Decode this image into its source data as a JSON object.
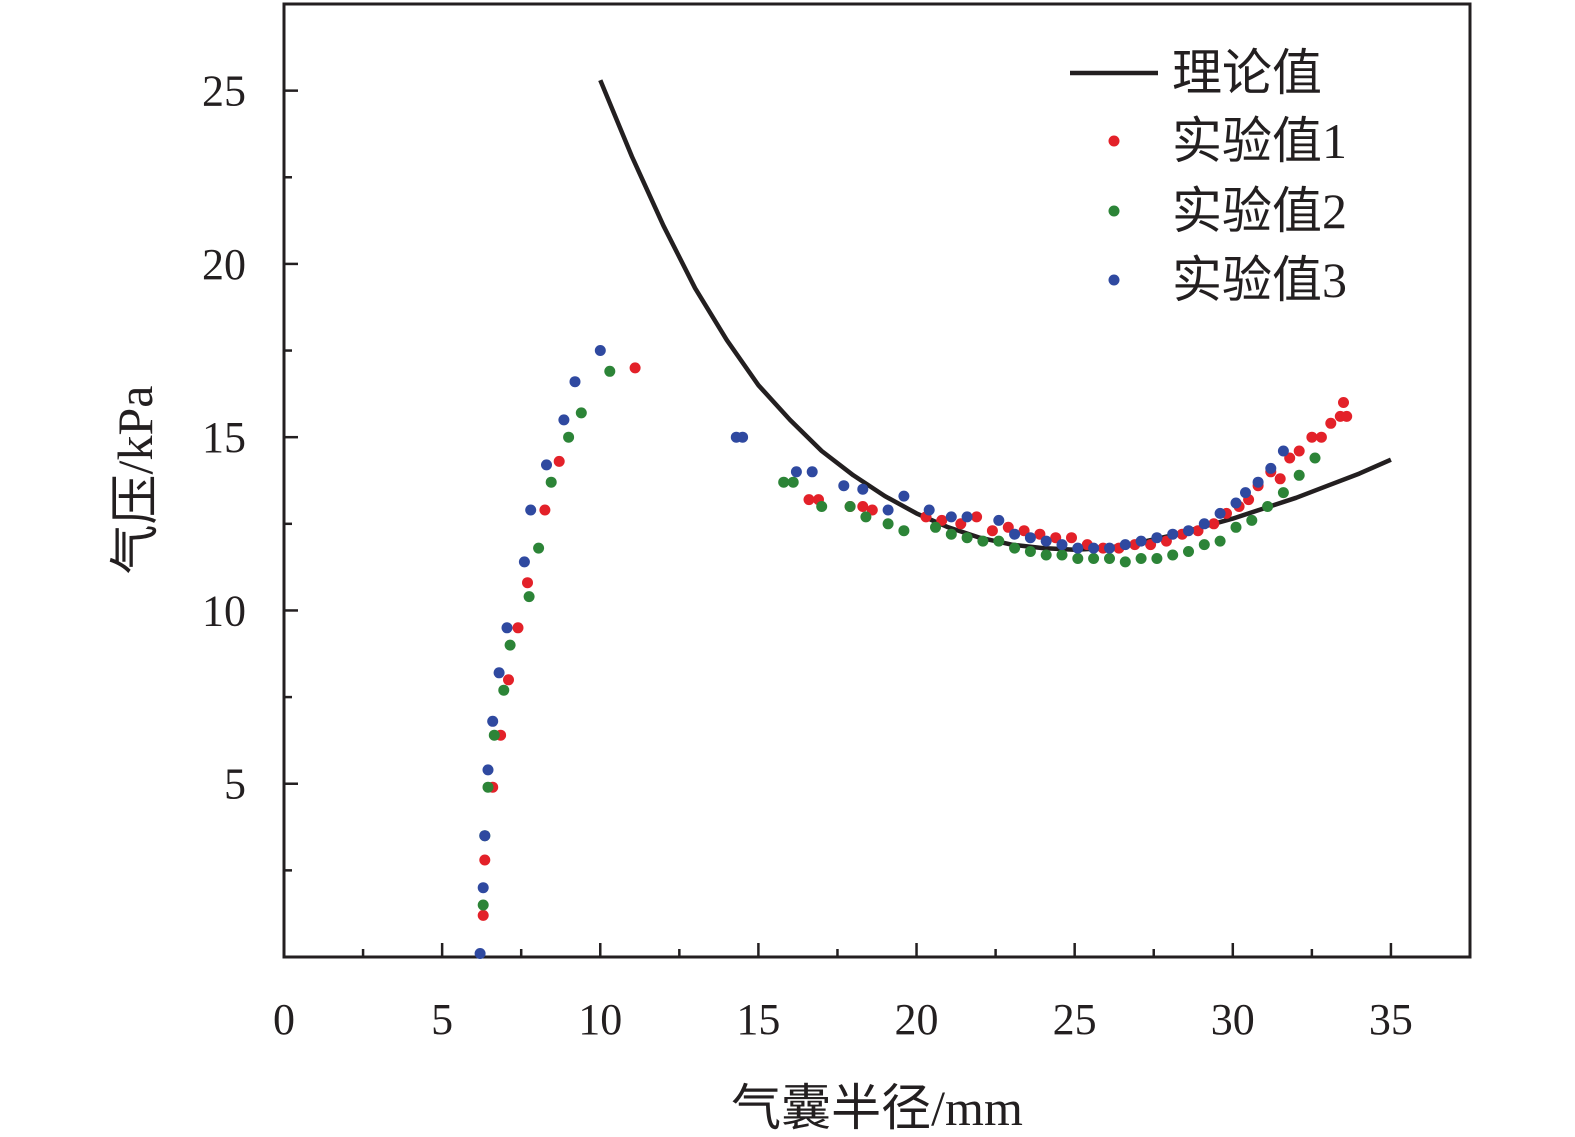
{
  "chart_data": {
    "type": "scatter",
    "xlabel": "气囊半径/mm",
    "ylabel": "气压/kPa",
    "xlim": [
      0,
      37.5
    ],
    "ylim": [
      0,
      27.5
    ],
    "x_ticks": [
      0,
      5,
      10,
      15,
      20,
      25,
      30,
      35
    ],
    "y_ticks": [
      5,
      10,
      15,
      20,
      25
    ],
    "grid": false,
    "legend_position": "top-right",
    "series": [
      {
        "name": "理论值",
        "kind": "line",
        "color": "#231f20",
        "x": [
          10,
          11,
          12,
          13,
          14,
          15,
          16,
          17,
          18,
          19,
          20,
          21,
          22,
          23,
          24,
          25,
          26,
          27,
          28,
          29,
          30,
          31,
          32,
          33,
          34,
          35
        ],
        "y": [
          25.3,
          23.1,
          21.1,
          19.3,
          17.8,
          16.5,
          15.5,
          14.6,
          13.9,
          13.3,
          12.8,
          12.4,
          12.1,
          11.9,
          11.8,
          11.75,
          11.8,
          11.95,
          12.15,
          12.4,
          12.65,
          12.95,
          13.25,
          13.6,
          13.95,
          14.35
        ]
      },
      {
        "name": "实验值1",
        "kind": "scatter",
        "color": "#e32129",
        "x": [
          6.3,
          6.35,
          6.6,
          6.85,
          7.1,
          7.4,
          7.7,
          8.25,
          8.7,
          11.1,
          16.6,
          16.9,
          17.9,
          18.3,
          18.6,
          20.3,
          20.8,
          21.4,
          21.9,
          22.4,
          22.9,
          23.4,
          23.9,
          24.4,
          24.9,
          25.4,
          25.9,
          26.4,
          26.9,
          27.4,
          27.9,
          28.4,
          28.9,
          29.4,
          29.8,
          30.2,
          30.5,
          30.8,
          31.2,
          31.5,
          31.8,
          32.1,
          32.5,
          32.8,
          33.1,
          33.4,
          33.5,
          33.6
        ],
        "y": [
          1.2,
          2.8,
          4.9,
          6.4,
          8.0,
          9.5,
          10.8,
          12.9,
          14.3,
          17.0,
          13.2,
          13.2,
          13.0,
          13.0,
          12.9,
          12.7,
          12.6,
          12.5,
          12.7,
          12.3,
          12.4,
          12.3,
          12.2,
          12.1,
          12.1,
          11.9,
          11.8,
          11.8,
          11.9,
          11.9,
          12.0,
          12.2,
          12.3,
          12.5,
          12.8,
          13.0,
          13.2,
          13.6,
          14.0,
          13.8,
          14.4,
          14.6,
          15.0,
          15.0,
          15.4,
          15.6,
          16.0,
          15.6
        ]
      },
      {
        "name": "实验值2",
        "kind": "scatter",
        "color": "#2c8437",
        "x": [
          6.3,
          6.35,
          6.45,
          6.65,
          6.95,
          7.15,
          7.75,
          8.05,
          8.45,
          9.0,
          9.4,
          10.3,
          15.8,
          16.1,
          17.0,
          17.9,
          18.4,
          19.1,
          19.6,
          20.6,
          21.1,
          21.6,
          22.1,
          22.6,
          23.1,
          23.6,
          24.1,
          24.6,
          25.1,
          25.6,
          26.1,
          26.6,
          27.1,
          27.6,
          28.1,
          28.6,
          29.1,
          29.6,
          30.1,
          30.6,
          31.1,
          31.6,
          32.1,
          32.6
        ],
        "y": [
          1.5,
          3.5,
          4.9,
          6.4,
          7.7,
          9.0,
          10.4,
          11.8,
          13.7,
          15.0,
          15.7,
          16.9,
          13.7,
          13.7,
          13.0,
          13.0,
          12.7,
          12.5,
          12.3,
          12.4,
          12.2,
          12.1,
          12.0,
          12.0,
          11.8,
          11.7,
          11.6,
          11.6,
          11.5,
          11.5,
          11.5,
          11.4,
          11.5,
          11.5,
          11.6,
          11.7,
          11.9,
          12.0,
          12.4,
          12.6,
          13.0,
          13.4,
          13.9,
          14.4
        ]
      },
      {
        "name": "实验值3",
        "kind": "scatter",
        "color": "#2f49a0",
        "x": [
          6.2,
          6.3,
          6.35,
          6.45,
          6.6,
          6.8,
          7.05,
          7.6,
          7.8,
          8.3,
          8.85,
          9.2,
          10.0,
          14.3,
          14.5,
          16.2,
          16.7,
          17.7,
          18.3,
          19.1,
          19.6,
          20.4,
          21.1,
          21.6,
          22.6,
          23.1,
          23.6,
          24.1,
          24.6,
          25.1,
          25.6,
          26.1,
          26.6,
          27.1,
          27.6,
          28.1,
          28.6,
          29.1,
          29.6,
          30.1,
          30.4,
          30.8,
          31.2,
          31.6
        ],
        "y": [
          0.1,
          2.0,
          3.5,
          5.4,
          6.8,
          8.2,
          9.5,
          11.4,
          12.9,
          14.2,
          15.5,
          16.6,
          17.5,
          15.0,
          15.0,
          14.0,
          14.0,
          13.6,
          13.5,
          12.9,
          13.3,
          12.9,
          12.7,
          12.7,
          12.6,
          12.2,
          12.1,
          12.0,
          11.9,
          11.8,
          11.8,
          11.8,
          11.9,
          12.0,
          12.1,
          12.2,
          12.3,
          12.5,
          12.8,
          13.1,
          13.4,
          13.7,
          14.1,
          14.6
        ]
      }
    ]
  }
}
